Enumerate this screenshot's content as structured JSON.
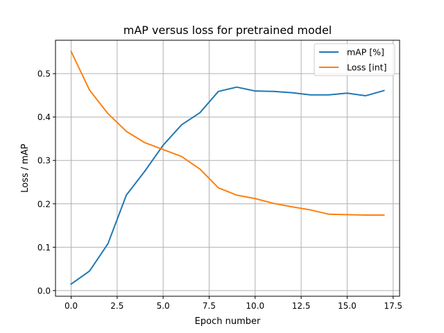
{
  "chart_data": {
    "type": "line",
    "title": "mAP versus loss for pretrained model",
    "xlabel": "Epoch number",
    "ylabel": "Loss / mAP",
    "xlim": [
      -0.85,
      17.85
    ],
    "ylim": [
      -0.013,
      0.577
    ],
    "xticks": [
      0,
      2.5,
      5,
      7.5,
      10,
      12.5,
      15,
      17.5
    ],
    "xtick_labels": [
      "0.0",
      "2.5",
      "5.0",
      "7.5",
      "10.0",
      "12.5",
      "15.0",
      "17.5"
    ],
    "yticks": [
      0,
      0.1,
      0.2,
      0.3,
      0.4,
      0.5
    ],
    "ytick_labels": [
      "0.0",
      "0.1",
      "0.2",
      "0.3",
      "0.4",
      "0.5"
    ],
    "grid": true,
    "legend_position": "top-right",
    "x": [
      0,
      1,
      2,
      3,
      4,
      5,
      6,
      7,
      8,
      9,
      10,
      11,
      12,
      13,
      14,
      15,
      16,
      17
    ],
    "series": [
      {
        "name": "mAP [%]",
        "color": "#1f77b4",
        "values": [
          0.015,
          0.045,
          0.108,
          0.22,
          0.275,
          0.335,
          0.382,
          0.41,
          0.459,
          0.469,
          0.46,
          0.459,
          0.456,
          0.451,
          0.451,
          0.455,
          0.449,
          0.461
        ]
      },
      {
        "name": "Loss [int]",
        "color": "#ff7f0e",
        "values": [
          0.551,
          0.462,
          0.408,
          0.367,
          0.341,
          0.325,
          0.309,
          0.28,
          0.237,
          0.22,
          0.212,
          0.201,
          0.193,
          0.186,
          0.176,
          0.175,
          0.174,
          0.174
        ]
      }
    ]
  }
}
